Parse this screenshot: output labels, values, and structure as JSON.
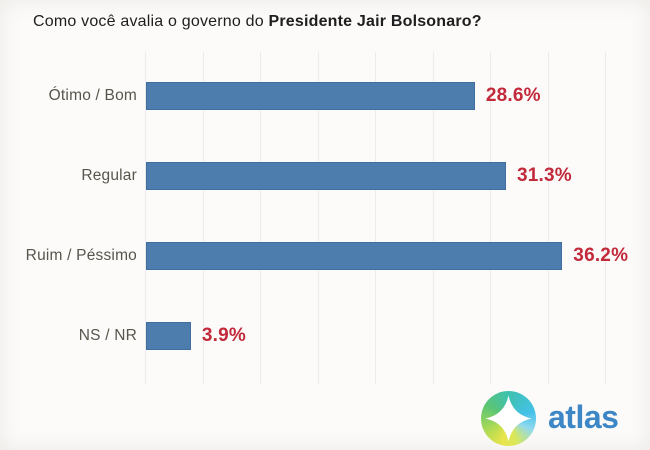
{
  "title": {
    "prefix": "Como você avalia o governo do ",
    "bold": "Presidente Jair Bolsonaro?"
  },
  "chart_data": {
    "type": "bar",
    "orientation": "horizontal",
    "title": "Como você avalia o governo do Presidente Jair Bolsonaro?",
    "categories": [
      "Ótimo / Bom",
      "Regular",
      "Ruim / Péssimo",
      "NS / NR"
    ],
    "values": [
      28.6,
      31.3,
      36.2,
      3.9
    ],
    "value_labels": [
      "28.6%",
      "31.3%",
      "36.2%",
      "3.9%"
    ],
    "xlim": [
      0,
      40
    ],
    "gridline_interval": 5,
    "grid": true,
    "legend": "none",
    "xlabel": "",
    "ylabel": ""
  },
  "colors": {
    "background": "#fcfbf9",
    "bar": "#4d7dad",
    "bar_border": "#3e6f9e",
    "value_label": "#c2293a",
    "category_label": "#56564c",
    "title": "#1e1e1e",
    "gridline": "#ecebe9",
    "logo_text_color": "#3d87c6",
    "logo_gradient": [
      "#45c1e8",
      "#e9e44b",
      "#5cc573",
      "#3ec1b0"
    ]
  },
  "branding": {
    "logo_text": "atlas"
  }
}
